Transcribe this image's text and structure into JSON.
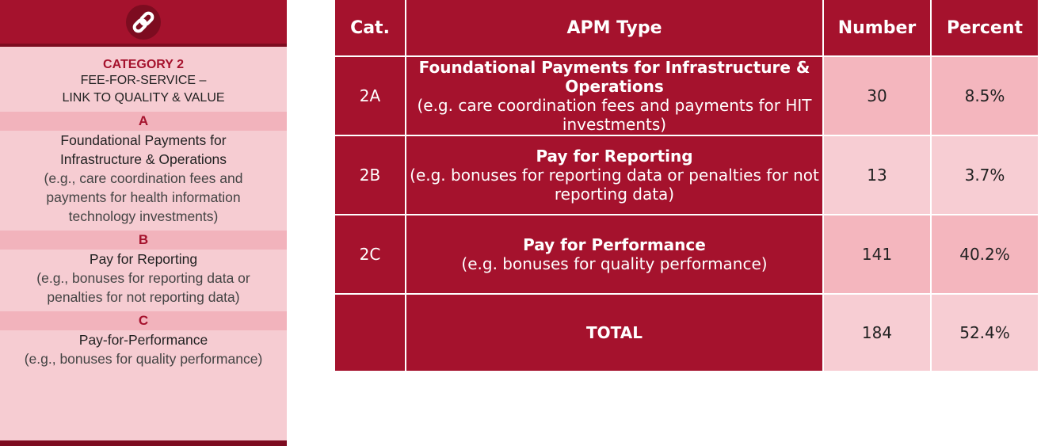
{
  "left_panel": {
    "category": "CATEGORY 2",
    "title_lines": [
      "FEE-FOR-SERVICE –",
      "LINK TO QUALITY & VALUE"
    ],
    "sections": [
      {
        "letter": "A",
        "lines": [
          "Foundational Payments for",
          "Infrastructure & Operations",
          "(e.g., care coordination fees and",
          "payments for health information",
          "technology investments)"
        ]
      },
      {
        "letter": "B",
        "lines": [
          "Pay for Reporting",
          "(e.g., bonuses for reporting data or",
          "penalties for not reporting data)"
        ]
      },
      {
        "letter": "C",
        "lines": [
          "Pay-for-Performance",
          "(e.g., bonuses for quality performance)"
        ]
      }
    ]
  },
  "table": {
    "headers": [
      "Cat.",
      "APM Type",
      "Number",
      "Percent"
    ],
    "rows": [
      {
        "cat": "2A",
        "title": "Foundational Payments for Infrastructure & Operations",
        "desc": "(e.g. care coordination fees and payments for HIT investments)",
        "number": 30,
        "percent": "8.5%"
      },
      {
        "cat": "2B",
        "title": "Pay for Reporting",
        "desc": "(e.g. bonuses for reporting data or penalties for not reporting data)",
        "number": 13,
        "percent": "3.7%"
      },
      {
        "cat": "2C",
        "title": "Pay for Performance",
        "desc": "(e.g. bonuses for quality performance)",
        "number": 141,
        "percent": "40.2%"
      },
      {
        "cat": null,
        "title": "TOTAL",
        "desc": null,
        "number": 184,
        "percent": "52.4%"
      }
    ]
  }
}
